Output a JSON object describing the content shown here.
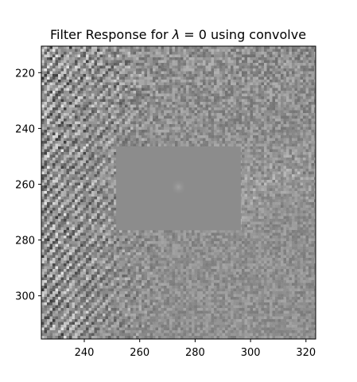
{
  "chart_data": {
    "type": "heatmap",
    "title": "Filter Response for λ = 0 using convolve",
    "title_parts": {
      "prefix": "Filter Response for ",
      "symbol": "λ",
      "suffix": " = 0 using convolve"
    },
    "xlabel": "",
    "ylabel": "",
    "colormap": "gray",
    "xlim": [
      224.5,
      323.5
    ],
    "ylim": [
      315.5,
      210.5
    ],
    "y_inverted": true,
    "x_ticks": [
      240,
      260,
      280,
      300,
      320
    ],
    "y_ticks": [
      220,
      240,
      260,
      280,
      300
    ],
    "x_tick_labels": [
      "240",
      "260",
      "280",
      "300",
      "320"
    ],
    "y_tick_labels": [
      "220",
      "240",
      "260",
      "280",
      "300"
    ],
    "flat_region": {
      "x_range": [
        251.5,
        296.5
      ],
      "y_range": [
        246.5,
        276.5
      ],
      "gray_value": 0.55
    },
    "center_blob": {
      "x": 274,
      "y": 261,
      "radius": 3
    },
    "grid": false,
    "legend": "none"
  }
}
